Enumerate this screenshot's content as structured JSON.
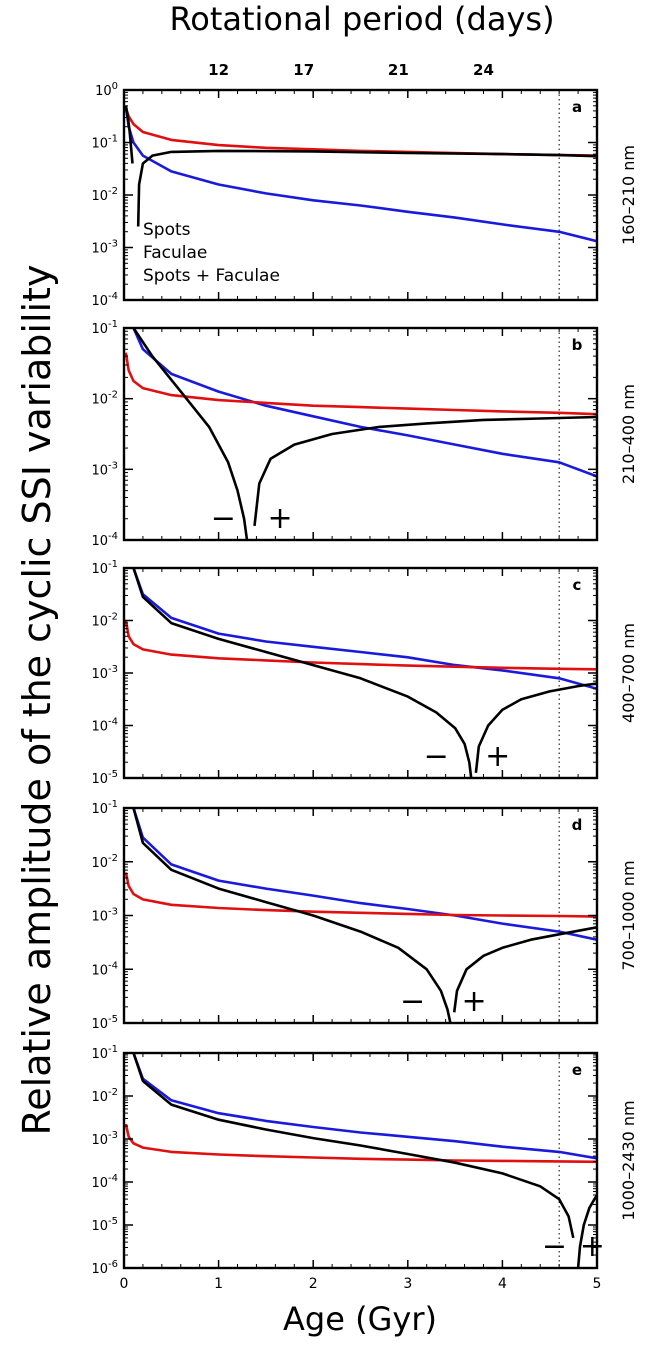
{
  "figure": {
    "top_title": "Rotational period (days)",
    "ylabel": "Relative amplitude of the cyclic SSI variability",
    "xlabel": "Age (Gyr)",
    "colors": {
      "spots": "#1a1adc",
      "faculae": "#e01010",
      "combined": "#000000"
    }
  },
  "top_axis": {
    "ticks": [
      {
        "age": 1.0,
        "label": "12"
      },
      {
        "age": 1.9,
        "label": "17"
      },
      {
        "age": 2.9,
        "label": "21"
      },
      {
        "age": 3.8,
        "label": "24"
      }
    ]
  },
  "legend": [
    "Spots",
    "Faculae",
    "Spots + Faculae"
  ],
  "chart_data": [
    {
      "type": "line",
      "panel": "a",
      "band": "160–210 nm",
      "xlim": [
        0,
        5
      ],
      "ylim_exp": [
        -4,
        0
      ],
      "yscale": "log",
      "xticks": [
        0,
        1,
        2,
        3,
        4,
        5
      ],
      "vline": 4.6,
      "series": [
        {
          "name": "Spots",
          "x": [
            0.02,
            0.05,
            0.1,
            0.2,
            0.5,
            1,
            1.5,
            2,
            2.5,
            3,
            3.5,
            4,
            4.6,
            5
          ],
          "log10_y": [
            -0.3,
            -0.7,
            -1.0,
            -1.25,
            -1.55,
            -1.8,
            -1.97,
            -2.1,
            -2.2,
            -2.32,
            -2.43,
            -2.56,
            -2.7,
            -2.88
          ]
        },
        {
          "name": "Faculae",
          "x": [
            0.02,
            0.05,
            0.1,
            0.2,
            0.5,
            1,
            1.5,
            2,
            2.5,
            3,
            3.5,
            4,
            4.6,
            5
          ],
          "log10_y": [
            -0.35,
            -0.5,
            -0.65,
            -0.8,
            -0.95,
            -1.05,
            -1.1,
            -1.13,
            -1.16,
            -1.18,
            -1.2,
            -1.22,
            -1.24,
            -1.25
          ]
        },
        {
          "name": "Spots + Faculae",
          "segments": [
            {
              "x": [
                0.02,
                0.04,
                0.06,
                0.075,
                0.09
              ],
              "log10_y": [
                -0.3,
                -0.5,
                -0.8,
                -1.1,
                -1.4
              ]
            },
            {
              "x": [
                0.15,
                0.16,
                0.2,
                0.3,
                0.5,
                1,
                2,
                3,
                4,
                4.6,
                5
              ],
              "log10_y": [
                -2.6,
                -1.8,
                -1.4,
                -1.25,
                -1.18,
                -1.16,
                -1.17,
                -1.2,
                -1.22,
                -1.24,
                -1.26
              ]
            }
          ]
        }
      ]
    },
    {
      "type": "line",
      "panel": "b",
      "band": "210–400 nm",
      "xlim": [
        0,
        5
      ],
      "ylim_exp": [
        -4,
        -1
      ],
      "yscale": "log",
      "xticks": [
        0,
        1,
        2,
        3,
        4,
        5
      ],
      "vline": 4.6,
      "sign_labels": [
        "−",
        "+"
      ],
      "sign_x": [
        1.05,
        1.65
      ],
      "series": [
        {
          "name": "Spots",
          "x": [
            0.1,
            0.2,
            0.5,
            1,
            1.5,
            2,
            2.5,
            3,
            3.5,
            4,
            4.6,
            5
          ],
          "log10_y": [
            -1.0,
            -1.3,
            -1.65,
            -1.9,
            -2.1,
            -2.25,
            -2.4,
            -2.52,
            -2.65,
            -2.78,
            -2.9,
            -3.1
          ]
        },
        {
          "name": "Faculae",
          "x": [
            0.02,
            0.05,
            0.1,
            0.2,
            0.5,
            1,
            1.5,
            2,
            2.5,
            3,
            3.5,
            4,
            4.6,
            5
          ],
          "log10_y": [
            -1.35,
            -1.6,
            -1.75,
            -1.85,
            -1.95,
            -2.02,
            -2.06,
            -2.1,
            -2.12,
            -2.14,
            -2.16,
            -2.18,
            -2.2,
            -2.22
          ]
        },
        {
          "name": "Spots + Faculae",
          "segments": [
            {
              "x": [
                0.1,
                0.3,
                0.6,
                0.9,
                1.1,
                1.2,
                1.27,
                1.3
              ],
              "log10_y": [
                -1.0,
                -1.4,
                -1.9,
                -2.4,
                -2.9,
                -3.3,
                -3.7,
                -4.0
              ]
            },
            {
              "x": [
                1.38,
                1.43,
                1.55,
                1.8,
                2.2,
                2.7,
                3.2,
                3.8,
                4.4,
                5.0
              ],
              "log10_y": [
                -3.8,
                -3.2,
                -2.85,
                -2.65,
                -2.5,
                -2.4,
                -2.35,
                -2.3,
                -2.28,
                -2.26
              ]
            }
          ]
        }
      ]
    },
    {
      "type": "line",
      "panel": "c",
      "band": "400–700 nm",
      "xlim": [
        0,
        5
      ],
      "ylim_exp": [
        -5,
        -1
      ],
      "yscale": "log",
      "xticks": [
        0,
        1,
        2,
        3,
        4,
        5
      ],
      "vline": 4.6,
      "sign_labels": [
        "−",
        "+"
      ],
      "sign_x": [
        3.3,
        3.95
      ],
      "series": [
        {
          "name": "Spots",
          "x": [
            0.1,
            0.2,
            0.5,
            1,
            1.5,
            2,
            2.5,
            3,
            3.5,
            4,
            4.6,
            5
          ],
          "log10_y": [
            -1.0,
            -1.5,
            -1.95,
            -2.25,
            -2.4,
            -2.5,
            -2.6,
            -2.7,
            -2.85,
            -2.95,
            -3.1,
            -3.3
          ]
        },
        {
          "name": "Faculae",
          "x": [
            0.02,
            0.05,
            0.1,
            0.2,
            0.5,
            1,
            1.5,
            2,
            2.5,
            3,
            3.5,
            4,
            4.6,
            5
          ],
          "log10_y": [
            -2.0,
            -2.3,
            -2.45,
            -2.55,
            -2.65,
            -2.72,
            -2.76,
            -2.8,
            -2.83,
            -2.86,
            -2.88,
            -2.9,
            -2.92,
            -2.93
          ]
        },
        {
          "name": "Spots + Faculae",
          "segments": [
            {
              "x": [
                0.1,
                0.2,
                0.5,
                1,
                1.5,
                2,
                2.5,
                3,
                3.3,
                3.5,
                3.6,
                3.65,
                3.67
              ],
              "log10_y": [
                -1.0,
                -1.55,
                -2.05,
                -2.35,
                -2.6,
                -2.85,
                -3.1,
                -3.45,
                -3.75,
                -4.05,
                -4.35,
                -4.7,
                -5.0
              ]
            },
            {
              "x": [
                3.72,
                3.75,
                3.85,
                4.0,
                4.2,
                4.5,
                4.8,
                5.0
              ],
              "log10_y": [
                -4.9,
                -4.4,
                -4.0,
                -3.7,
                -3.5,
                -3.35,
                -3.25,
                -3.2
              ]
            }
          ]
        }
      ]
    },
    {
      "type": "line",
      "panel": "d",
      "band": "700–1000 nm",
      "xlim": [
        0,
        5
      ],
      "ylim_exp": [
        -5,
        -1
      ],
      "yscale": "log",
      "xticks": [
        0,
        1,
        2,
        3,
        4,
        5
      ],
      "vline": 4.6,
      "sign_labels": [
        "−",
        "+"
      ],
      "sign_x": [
        3.05,
        3.7
      ],
      "series": [
        {
          "name": "Spots",
          "x": [
            0.1,
            0.2,
            0.5,
            1,
            1.5,
            2,
            2.5,
            3,
            3.5,
            4,
            4.6,
            5
          ],
          "log10_y": [
            -1.0,
            -1.55,
            -2.05,
            -2.35,
            -2.5,
            -2.63,
            -2.77,
            -2.88,
            -3.0,
            -3.15,
            -3.3,
            -3.45
          ]
        },
        {
          "name": "Faculae",
          "x": [
            0.02,
            0.05,
            0.1,
            0.2,
            0.5,
            1,
            1.5,
            2,
            2.5,
            3,
            3.5,
            4,
            4.6,
            5
          ],
          "log10_y": [
            -2.2,
            -2.45,
            -2.6,
            -2.7,
            -2.8,
            -2.86,
            -2.9,
            -2.93,
            -2.95,
            -2.97,
            -2.99,
            -3.0,
            -3.01,
            -3.02
          ]
        },
        {
          "name": "Spots + Faculae",
          "segments": [
            {
              "x": [
                0.1,
                0.2,
                0.5,
                1,
                1.5,
                2,
                2.5,
                2.9,
                3.2,
                3.35,
                3.42,
                3.45
              ],
              "log10_y": [
                -1.0,
                -1.65,
                -2.15,
                -2.5,
                -2.75,
                -3.0,
                -3.3,
                -3.6,
                -4.0,
                -4.4,
                -4.75,
                -5.0
              ]
            },
            {
              "x": [
                3.49,
                3.52,
                3.62,
                3.8,
                4.0,
                4.3,
                4.6,
                5.0
              ],
              "log10_y": [
                -4.8,
                -4.4,
                -4.0,
                -3.75,
                -3.6,
                -3.45,
                -3.35,
                -3.22
              ]
            }
          ]
        }
      ]
    },
    {
      "type": "line",
      "panel": "e",
      "band": "1000–2430 nm",
      "xlim": [
        0,
        5
      ],
      "ylim_exp": [
        -6,
        -1
      ],
      "yscale": "log",
      "xticks": [
        0,
        1,
        2,
        3,
        4,
        5
      ],
      "vline": 4.6,
      "sign_labels": [
        "−",
        "+"
      ],
      "sign_x": [
        4.55,
        4.95
      ],
      "series": [
        {
          "name": "Spots",
          "x": [
            0.1,
            0.2,
            0.5,
            1,
            1.5,
            2,
            2.5,
            3,
            3.5,
            4,
            4.6,
            5
          ],
          "log10_y": [
            -1.0,
            -1.6,
            -2.1,
            -2.4,
            -2.58,
            -2.72,
            -2.85,
            -2.95,
            -3.05,
            -3.18,
            -3.3,
            -3.45
          ]
        },
        {
          "name": "Faculae",
          "x": [
            0.02,
            0.05,
            0.1,
            0.2,
            0.5,
            1,
            1.5,
            2,
            2.5,
            3,
            3.5,
            4,
            4.6,
            5
          ],
          "log10_y": [
            -2.65,
            -2.95,
            -3.1,
            -3.2,
            -3.3,
            -3.36,
            -3.4,
            -3.43,
            -3.46,
            -3.48,
            -3.5,
            -3.51,
            -3.52,
            -3.53
          ]
        },
        {
          "name": "Spots + Faculae",
          "segments": [
            {
              "x": [
                0.1,
                0.2,
                0.5,
                1,
                1.5,
                2,
                2.5,
                3,
                3.5,
                4,
                4.4,
                4.6,
                4.7,
                4.75
              ],
              "log10_y": [
                -1.0,
                -1.65,
                -2.2,
                -2.55,
                -2.78,
                -2.98,
                -3.15,
                -3.35,
                -3.55,
                -3.8,
                -4.1,
                -4.4,
                -4.8,
                -5.3
              ]
            },
            {
              "x": [
                4.8,
                4.82,
                4.86,
                4.92,
                5.0
              ],
              "log10_y": [
                -6.0,
                -5.5,
                -5.0,
                -4.6,
                -4.3
              ]
            }
          ]
        }
      ]
    }
  ]
}
